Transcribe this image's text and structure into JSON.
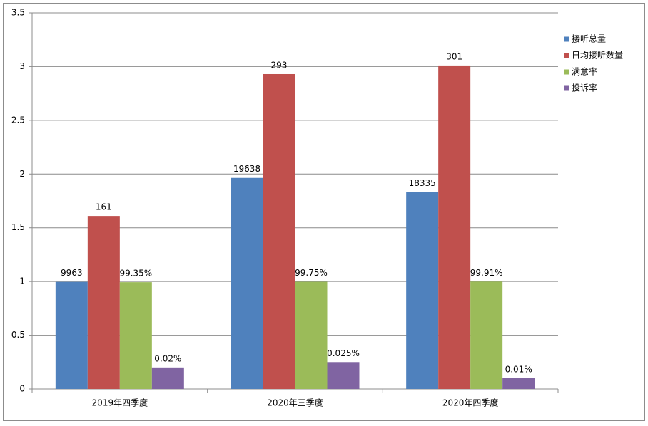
{
  "chart_data": {
    "type": "bar",
    "categories": [
      "2019年四季度",
      "2020年三季度",
      "2020年四季度"
    ],
    "series": [
      {
        "name": "接听总量",
        "color": "#4f81bd",
        "values": [
          0.9963,
          1.9638,
          1.8335
        ],
        "value_labels": [
          "9963",
          "19638",
          "18335"
        ]
      },
      {
        "name": "日均接听数量",
        "color": "#c0504d",
        "values": [
          1.61,
          2.93,
          3.01
        ],
        "value_labels": [
          "161",
          "293",
          "301"
        ]
      },
      {
        "name": "满意率",
        "color": "#9bbb59",
        "values": [
          0.9935,
          0.9975,
          0.9991
        ],
        "value_labels": [
          "99.35%",
          "99.75%",
          "99.91%"
        ]
      },
      {
        "name": "投诉率",
        "color": "#8064a2",
        "values": [
          0.2,
          0.25,
          0.1
        ],
        "value_labels": [
          "0.02%",
          "0.025%",
          "0.01%"
        ]
      }
    ],
    "ylim": [
      0,
      3.5
    ],
    "yticks": [
      0,
      0.5,
      1,
      1.5,
      2,
      2.5,
      3,
      3.5
    ],
    "grid": true,
    "legend": "right"
  }
}
